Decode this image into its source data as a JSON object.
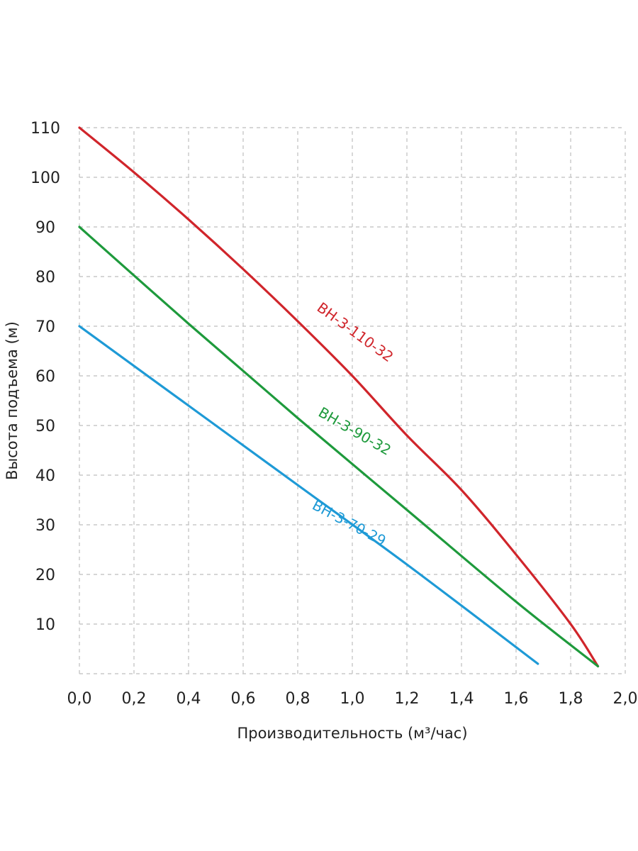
{
  "chart_data": {
    "type": "line",
    "title": "",
    "xlabel": "Производительность (м³/час)",
    "ylabel": "Высота подъема (м)",
    "xlim": [
      0,
      2.0
    ],
    "ylim": [
      0,
      110
    ],
    "grid": true,
    "x_ticks": [
      0,
      0.2,
      0.4,
      0.6,
      0.8,
      1.0,
      1.2,
      1.4,
      1.6,
      1.8,
      2.0
    ],
    "x_tick_labels": [
      "0,0",
      "0,2",
      "0,4",
      "0,6",
      "0,8",
      "1,0",
      "1,2",
      "1,4",
      "1,6",
      "1,8",
      "2,0"
    ],
    "y_ticks": [
      10,
      20,
      30,
      40,
      50,
      60,
      70,
      80,
      90,
      100,
      110
    ],
    "y_tick_labels": [
      "10",
      "20",
      "30",
      "40",
      "50",
      "60",
      "70",
      "80",
      "90",
      "100",
      "110"
    ],
    "series": [
      {
        "name": "ВН-3-110-32",
        "color": "#d0252b",
        "x": [
          0,
          0.2,
          0.4,
          0.6,
          0.8,
          1.0,
          1.2,
          1.4,
          1.6,
          1.8,
          1.9
        ],
        "y": [
          110,
          101,
          91.5,
          81.5,
          71,
          60,
          48,
          37,
          24,
          10,
          1.5
        ]
      },
      {
        "name": "ВН-3-90-32",
        "color": "#1e9a3c",
        "x": [
          0,
          0.4,
          0.8,
          1.2,
          1.6,
          1.9
        ],
        "y": [
          90,
          70.5,
          51.5,
          33,
          14.5,
          1.5
        ]
      },
      {
        "name": "ВН-3-70-29",
        "color": "#1e9ad6",
        "x": [
          0,
          0.4,
          0.8,
          1.2,
          1.68
        ],
        "y": [
          70,
          54,
          38,
          22,
          2
        ]
      }
    ],
    "annotations": [
      {
        "text": "ВН-3-110-32",
        "series": 0,
        "x": 1.0,
        "y": 68,
        "rotation": 36
      },
      {
        "text": "ВН-3-90-32",
        "series": 1,
        "x": 1.0,
        "y": 48,
        "rotation": 30
      },
      {
        "text": "ВН-3-70-29",
        "series": 2,
        "x": 0.98,
        "y": 29.5,
        "rotation": 28
      }
    ]
  }
}
